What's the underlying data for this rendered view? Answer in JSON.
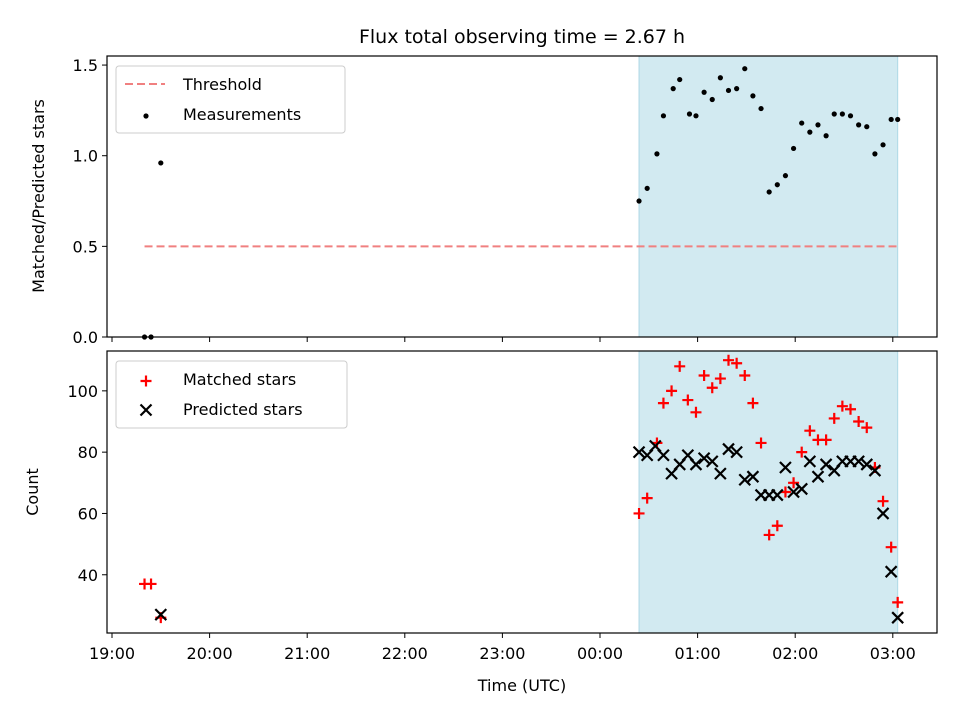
{
  "chart_data": {
    "type": "scatter",
    "title": "Flux total observing time = 2.67 h",
    "xlabel": "Time (UTC)",
    "x_tick_labels": [
      "19:00",
      "20:00",
      "21:00",
      "22:00",
      "23:00",
      "00:00",
      "01:00",
      "02:00",
      "03:00"
    ],
    "shaded_span": {
      "start": "00:24",
      "end": "03:03",
      "color": "#add8e6"
    },
    "top_panel": {
      "ylabel": "Matched/Predicted stars",
      "ylim": [
        0,
        1.55
      ],
      "y_ticks": [
        "0.0",
        "0.5",
        "1.0",
        "1.5"
      ],
      "legend": [
        "Threshold",
        "Measurements"
      ],
      "threshold": {
        "name": "Threshold",
        "value": 0.5,
        "start": "19:20",
        "end": "03:03",
        "color": "#f08080"
      },
      "measurements": {
        "name": "Measurements",
        "color": "#000000",
        "x": [
          "19:20",
          "19:24",
          "19:30",
          "00:24",
          "00:29",
          "00:35",
          "00:39",
          "00:45",
          "00:49",
          "00:55",
          "00:59",
          "01:04",
          "01:09",
          "01:14",
          "01:19",
          "01:24",
          "01:29",
          "01:34",
          "01:39",
          "01:44",
          "01:49",
          "01:54",
          "01:59",
          "02:04",
          "02:09",
          "02:14",
          "02:19",
          "02:24",
          "02:29",
          "02:34",
          "02:39",
          "02:44",
          "02:49",
          "02:54",
          "02:59",
          "03:03"
        ],
        "y": [
          0.0,
          0.0,
          0.96,
          0.75,
          0.82,
          1.01,
          1.22,
          1.37,
          1.42,
          1.23,
          1.22,
          1.35,
          1.31,
          1.43,
          1.36,
          1.37,
          1.48,
          1.33,
          1.26,
          0.8,
          0.84,
          0.89,
          1.04,
          1.18,
          1.13,
          1.17,
          1.11,
          1.23,
          1.23,
          1.22,
          1.17,
          1.16,
          1.01,
          1.06,
          1.2,
          1.2
        ]
      }
    },
    "bottom_panel": {
      "ylabel": "Count",
      "ylim": [
        21,
        113
      ],
      "y_ticks": [
        "40",
        "60",
        "80",
        "100"
      ],
      "legend": [
        "Matched stars",
        "Predicted stars"
      ],
      "series": [
        {
          "name": "Matched stars",
          "marker": "+",
          "color": "#ff0000",
          "x": [
            "19:20",
            "19:24",
            "19:30",
            "00:24",
            "00:29",
            "00:35",
            "00:39",
            "00:44",
            "00:49",
            "00:54",
            "00:59",
            "01:04",
            "01:09",
            "01:14",
            "01:19",
            "01:24",
            "01:29",
            "01:34",
            "01:39",
            "01:44",
            "01:49",
            "01:54",
            "01:59",
            "02:04",
            "02:09",
            "02:14",
            "02:19",
            "02:24",
            "02:29",
            "02:34",
            "02:39",
            "02:44",
            "02:49",
            "02:54",
            "02:59",
            "03:03"
          ],
          "values": [
            37,
            37,
            26,
            60,
            65,
            83,
            96,
            100,
            108,
            97,
            93,
            105,
            101,
            104,
            110,
            109,
            105,
            96,
            83,
            53,
            56,
            67,
            70,
            80,
            87,
            84,
            84,
            91,
            95,
            94,
            90,
            88,
            75,
            64,
            49,
            31
          ]
        },
        {
          "name": "Predicted stars",
          "marker": "x",
          "color": "#000000",
          "x": [
            "19:30",
            "00:24",
            "00:29",
            "00:34",
            "00:39",
            "00:44",
            "00:49",
            "00:54",
            "00:59",
            "01:04",
            "01:09",
            "01:14",
            "01:19",
            "01:24",
            "01:29",
            "01:34",
            "01:39",
            "01:44",
            "01:49",
            "01:54",
            "01:59",
            "02:04",
            "02:09",
            "02:14",
            "02:19",
            "02:24",
            "02:29",
            "02:34",
            "02:39",
            "02:44",
            "02:49",
            "02:54",
            "02:59",
            "03:03"
          ],
          "values": [
            27,
            80,
            79,
            82,
            79,
            73,
            76,
            79,
            76,
            78,
            77,
            73,
            81,
            80,
            71,
            72,
            66,
            66,
            66,
            75,
            67,
            68,
            77,
            72,
            76,
            74,
            77,
            77,
            77,
            76,
            74,
            60,
            41,
            26
          ]
        }
      ]
    }
  }
}
